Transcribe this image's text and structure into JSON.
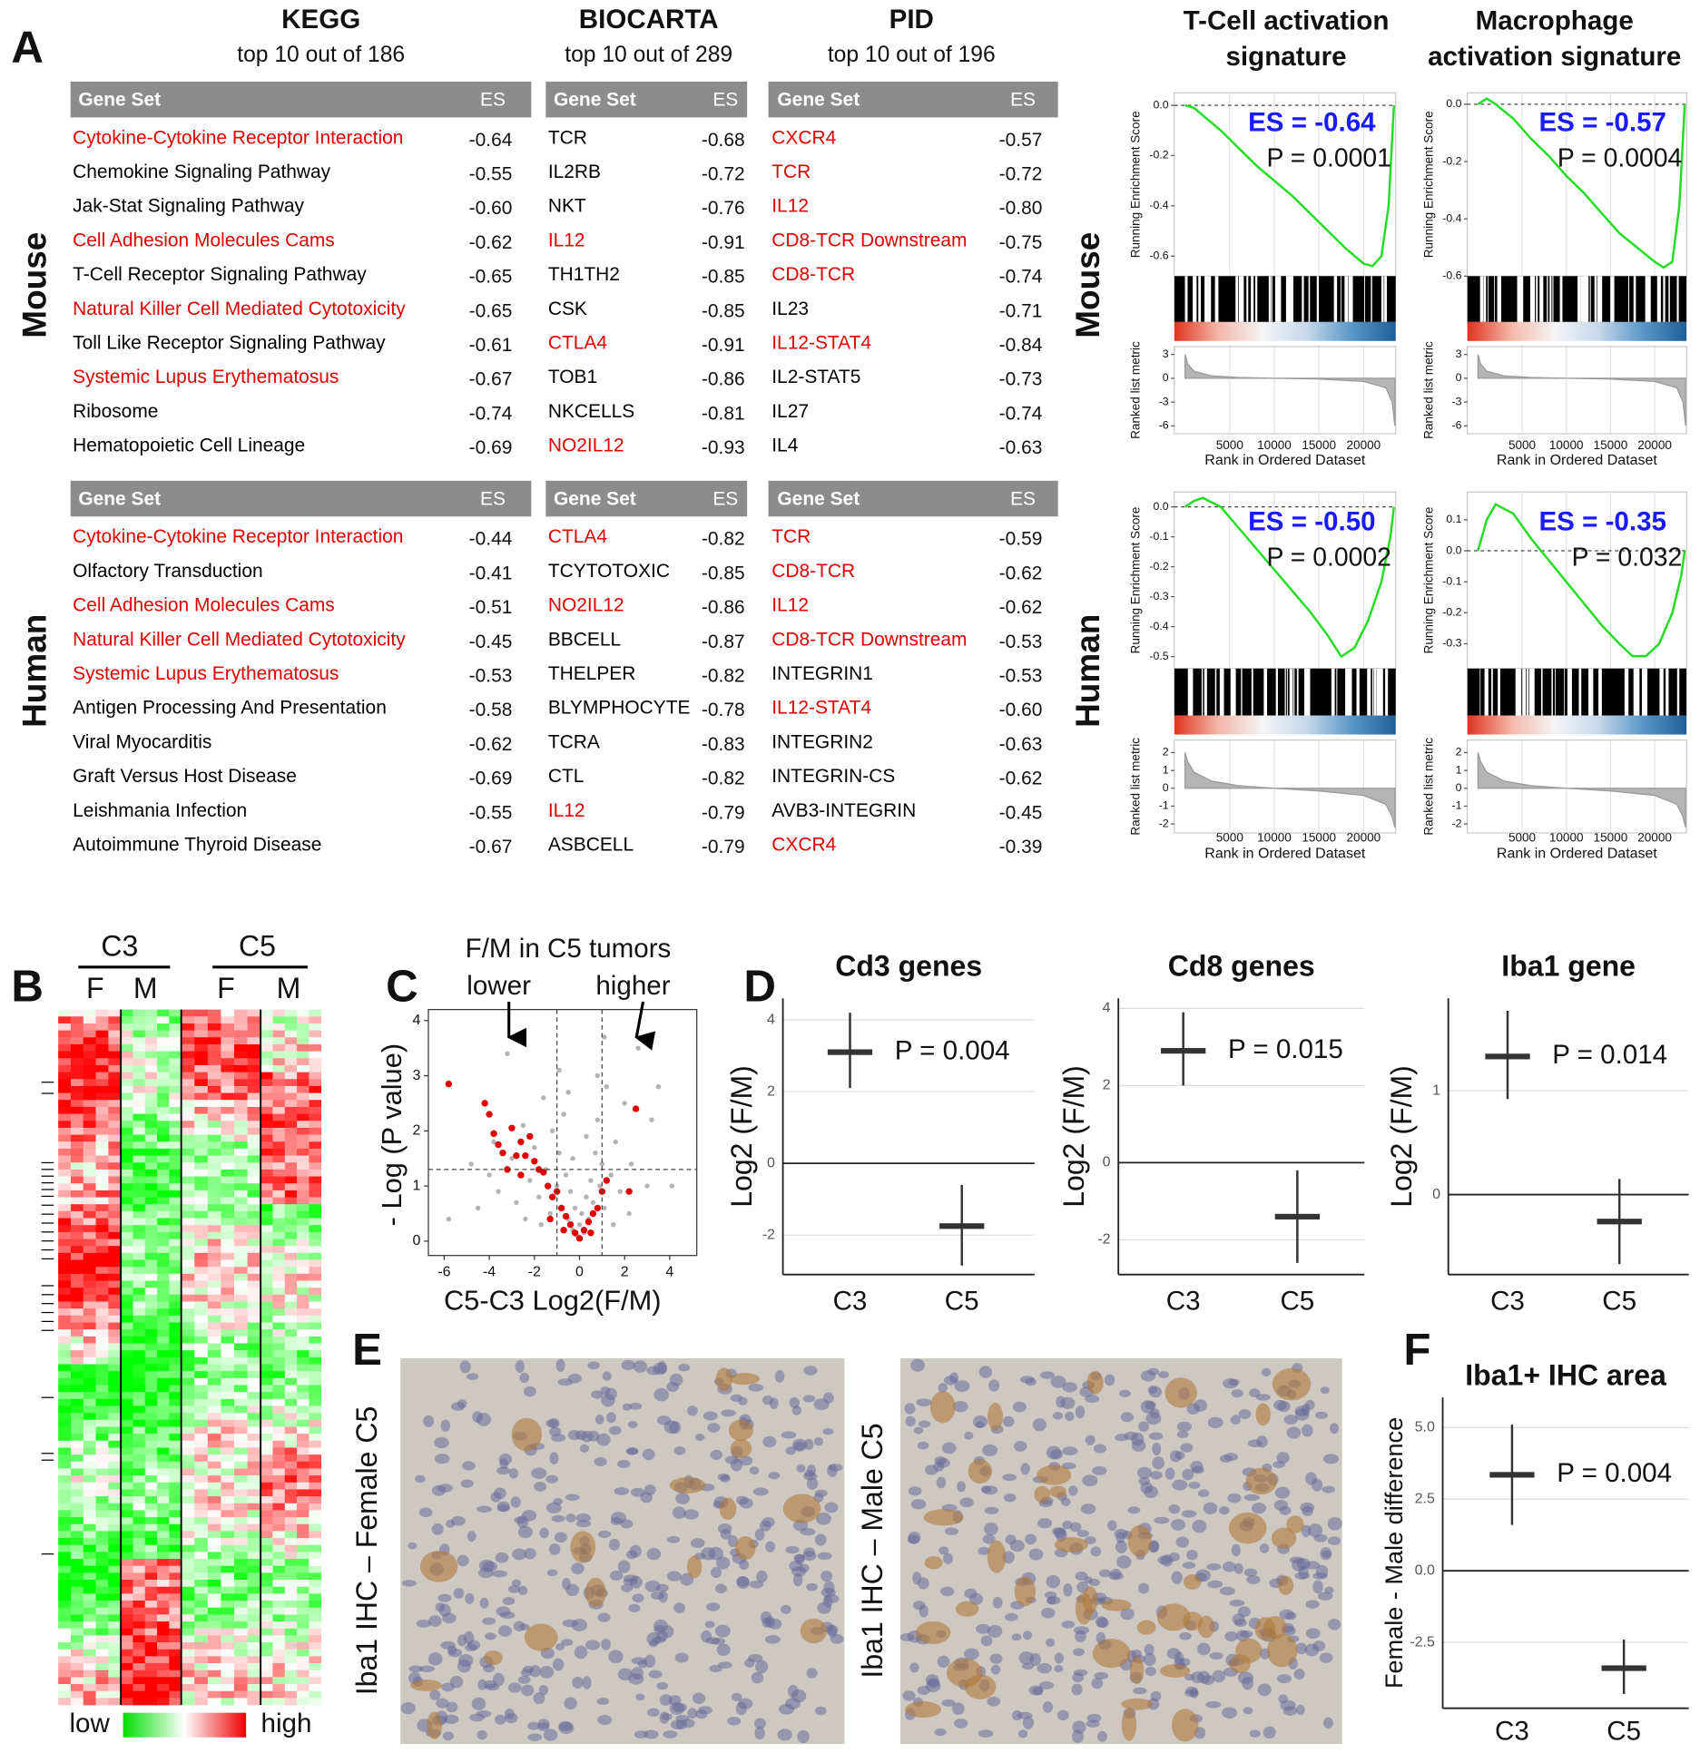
{
  "panel_labels": [
    "A",
    "B",
    "C",
    "D",
    "E",
    "F"
  ],
  "row_labels": [
    "Mouse",
    "Human"
  ],
  "tables": [
    {
      "title": "KEGG",
      "subtitle": "top 10 out of 186",
      "header": [
        "Gene Set",
        "ES"
      ],
      "mouse": [
        [
          "Cytokine-Cytokine Receptor Interaction",
          "-0.64",
          "#e00000"
        ],
        [
          "Chemokine Signaling Pathway",
          "-0.55",
          "#000000"
        ],
        [
          "Jak-Stat Signaling Pathway",
          "-0.60",
          "#000000"
        ],
        [
          "Cell Adhesion Molecules Cams",
          "-0.62",
          "#e00000"
        ],
        [
          "T-Cell Receptor Signaling Pathway",
          "-0.65",
          "#000000"
        ],
        [
          "Natural Killer Cell Mediated Cytotoxicity",
          "-0.65",
          "#e00000"
        ],
        [
          "Toll Like Receptor Signaling Pathway",
          "-0.61",
          "#000000"
        ],
        [
          "Systemic Lupus Erythematosus",
          "-0.67",
          "#e00000"
        ],
        [
          "Ribosome",
          "-0.74",
          "#000000"
        ],
        [
          "Hematopoietic Cell Lineage",
          "-0.69",
          "#000000"
        ]
      ],
      "human": [
        [
          "Cytokine-Cytokine Receptor Interaction",
          "-0.44",
          "#e00000"
        ],
        [
          "Olfactory Transduction",
          "-0.41",
          "#000000"
        ],
        [
          "Cell Adhesion Molecules Cams",
          "-0.51",
          "#e00000"
        ],
        [
          "Natural Killer Cell Mediated Cytotoxicity",
          "-0.45",
          "#e00000"
        ],
        [
          "Systemic Lupus Erythematosus",
          "-0.53",
          "#e00000"
        ],
        [
          "Antigen Processing And Presentation",
          "-0.58",
          "#000000"
        ],
        [
          "Viral Myocarditis",
          "-0.62",
          "#000000"
        ],
        [
          "Graft Versus Host Disease",
          "-0.69",
          "#000000"
        ],
        [
          "Leishmania Infection",
          "-0.55",
          "#000000"
        ],
        [
          "Autoimmune Thyroid Disease",
          "-0.67",
          "#000000"
        ]
      ]
    },
    {
      "title": "BIOCARTA",
      "subtitle": "top 10 out of 289",
      "header": [
        "Gene Set",
        "ES"
      ],
      "mouse": [
        [
          "TCR",
          "-0.68",
          "#000000"
        ],
        [
          "IL2RB",
          "-0.72",
          "#000000"
        ],
        [
          "NKT",
          "-0.76",
          "#000000"
        ],
        [
          "IL12",
          "-0.91",
          "#e00000"
        ],
        [
          "TH1TH2",
          "-0.85",
          "#000000"
        ],
        [
          "CSK",
          "-0.85",
          "#000000"
        ],
        [
          "CTLA4",
          "-0.91",
          "#e00000"
        ],
        [
          "TOB1",
          "-0.86",
          "#000000"
        ],
        [
          "NKCELLS",
          "-0.81",
          "#000000"
        ],
        [
          "NO2IL12",
          "-0.93",
          "#e00000"
        ]
      ],
      "human": [
        [
          "CTLA4",
          "-0.82",
          "#e00000"
        ],
        [
          "TCYTOTOXIC",
          "-0.85",
          "#000000"
        ],
        [
          "NO2IL12",
          "-0.86",
          "#e00000"
        ],
        [
          "BBCELL",
          "-0.87",
          "#000000"
        ],
        [
          "THELPER",
          "-0.82",
          "#000000"
        ],
        [
          "BLYMPHOCYTE",
          "-0.78",
          "#000000"
        ],
        [
          "TCRA",
          "-0.83",
          "#000000"
        ],
        [
          "CTL",
          "-0.82",
          "#000000"
        ],
        [
          "IL12",
          "-0.79",
          "#e00000"
        ],
        [
          "ASBCELL",
          "-0.79",
          "#000000"
        ]
      ]
    },
    {
      "title": "PID",
      "subtitle": "top 10 out of 196",
      "header": [
        "Gene Set",
        "ES"
      ],
      "mouse": [
        [
          "CXCR4",
          "-0.57",
          "#e00000"
        ],
        [
          "TCR",
          "-0.72",
          "#e00000"
        ],
        [
          "IL12",
          "-0.80",
          "#e00000"
        ],
        [
          "CD8-TCR Downstream",
          "-0.75",
          "#e00000"
        ],
        [
          "CD8-TCR",
          "-0.74",
          "#e00000"
        ],
        [
          "IL23",
          "-0.71",
          "#000000"
        ],
        [
          "IL12-STAT4",
          "-0.84",
          "#e00000"
        ],
        [
          "IL2-STAT5",
          "-0.73",
          "#000000"
        ],
        [
          "IL27",
          "-0.74",
          "#000000"
        ],
        [
          "IL4",
          "-0.63",
          "#000000"
        ]
      ],
      "human": [
        [
          "TCR",
          "-0.59",
          "#e00000"
        ],
        [
          "CD8-TCR",
          "-0.62",
          "#e00000"
        ],
        [
          "IL12",
          "-0.62",
          "#e00000"
        ],
        [
          "CD8-TCR Downstream",
          "-0.53",
          "#e00000"
        ],
        [
          "INTEGRIN1",
          "-0.53",
          "#000000"
        ],
        [
          "IL12-STAT4",
          "-0.60",
          "#e00000"
        ],
        [
          "INTEGRIN2",
          "-0.63",
          "#000000"
        ],
        [
          "INTEGRIN-CS",
          "-0.62",
          "#000000"
        ],
        [
          "AVB3-INTEGRIN",
          "-0.45",
          "#000000"
        ],
        [
          "CXCR4",
          "-0.39",
          "#e00000"
        ]
      ]
    }
  ],
  "heatmap": {
    "groups": [
      "C3",
      "C5"
    ],
    "columns": [
      "F",
      "M",
      "F",
      "M"
    ],
    "legend": [
      "low",
      "high"
    ]
  },
  "images": {
    "labels": [
      "Iba1 IHC – Female C5",
      "Iba1 IHC – Male C5"
    ]
  },
  "chart_data": [
    {
      "type": "gsea",
      "title": [
        "T-Cell activation",
        "signature"
      ],
      "es_label": "ES = -0.64",
      "p_label": "P = 0.0001",
      "ylabel": "Running Enrichment Score",
      "metric_label": "Ranked list metric",
      "xlabel": "Rank in Ordered Dataset",
      "color": "#22dd22",
      "label_color": "#1a1aff",
      "x": [
        0,
        1000,
        2000,
        4000,
        6000,
        8000,
        10000,
        12000,
        14000,
        16000,
        18000,
        20000,
        21000,
        22000,
        22800,
        23400
      ],
      "values": [
        0,
        -0.01,
        -0.04,
        -0.1,
        -0.17,
        -0.24,
        -0.3,
        -0.36,
        -0.43,
        -0.5,
        -0.57,
        -0.63,
        -0.64,
        -0.6,
        -0.4,
        0
      ],
      "xlim": [
        -1200,
        23600
      ],
      "xticks": [
        5000,
        10000,
        15000,
        20000
      ],
      "ylim": [
        -0.68,
        0.05
      ],
      "yticks": [
        {
          "value": 0,
          "label": "0.0"
        },
        -0.2,
        -0.4,
        -0.6
      ],
      "metric": {
        "x": [
          0,
          300,
          1000,
          3000,
          6000,
          10000,
          15000,
          20000,
          22500,
          23200,
          23500
        ],
        "values": [
          3,
          1.8,
          0.9,
          0.3,
          0.1,
          0,
          -0.1,
          -0.4,
          -1.2,
          -3,
          -6
        ],
        "ylim": [
          -7,
          4
        ],
        "yticks": [
          3,
          0,
          -3,
          -6
        ]
      }
    },
    {
      "type": "gsea",
      "title": [
        "Macrophage",
        "activation signature"
      ],
      "es_label": "ES = -0.57",
      "p_label": "P = 0.0004",
      "ylabel": "Running Enrichment Score",
      "metric_label": "Ranked list metric",
      "xlabel": "Rank in Ordered Dataset",
      "color": "#22dd22",
      "label_color": "#1a1aff",
      "x": [
        0,
        1000,
        2000,
        4000,
        6000,
        8000,
        10000,
        12000,
        14000,
        16000,
        18000,
        20000,
        21000,
        22000,
        22800,
        23400
      ],
      "values": [
        0,
        0.02,
        0,
        -0.05,
        -0.12,
        -0.18,
        -0.25,
        -0.31,
        -0.38,
        -0.45,
        -0.5,
        -0.55,
        -0.57,
        -0.55,
        -0.35,
        0
      ],
      "xlim": [
        -1200,
        23600
      ],
      "xticks": [
        5000,
        10000,
        15000,
        20000
      ],
      "ylim": [
        -0.6,
        0.04
      ],
      "yticks": [
        {
          "value": 0,
          "label": "0.0"
        },
        -0.2,
        -0.4,
        -0.6
      ],
      "metric": {
        "x": [
          0,
          300,
          1000,
          3000,
          6000,
          10000,
          15000,
          20000,
          22500,
          23200,
          23500
        ],
        "values": [
          3,
          1.8,
          0.9,
          0.3,
          0.1,
          0,
          -0.1,
          -0.4,
          -1.2,
          -3,
          -6
        ],
        "ylim": [
          -7,
          4
        ],
        "yticks": [
          3,
          0,
          -3,
          -6
        ]
      }
    },
    {
      "type": "gsea",
      "es_label": "ES = -0.50",
      "p_label": "P = 0.0002",
      "ylabel": "Running Enrichment Score",
      "metric_label": "Ranked list metric",
      "xlabel": "Rank in Ordered Dataset",
      "color": "#22dd22",
      "label_color": "#1a1aff",
      "x": [
        0,
        1000,
        2000,
        4000,
        6000,
        8000,
        10000,
        12000,
        14000,
        16000,
        17500,
        19000,
        20500,
        22000,
        23000,
        23400
      ],
      "values": [
        0,
        0.02,
        0.03,
        0,
        -0.07,
        -0.14,
        -0.21,
        -0.28,
        -0.35,
        -0.43,
        -0.5,
        -0.47,
        -0.38,
        -0.25,
        -0.1,
        0
      ],
      "xlim": [
        -1200,
        23600
      ],
      "xticks": [
        5000,
        10000,
        15000,
        20000
      ],
      "ylim": [
        -0.54,
        0.05
      ],
      "yticks": [
        {
          "value": 0,
          "label": "0.0"
        },
        -0.1,
        -0.2,
        -0.3,
        -0.4,
        -0.5
      ],
      "metric": {
        "x": [
          0,
          300,
          1000,
          3000,
          6000,
          10000,
          15000,
          20000,
          22500,
          23200,
          23500
        ],
        "values": [
          2,
          1.5,
          0.9,
          0.4,
          0.15,
          0,
          -0.15,
          -0.4,
          -0.9,
          -1.6,
          -2.2
        ],
        "ylim": [
          -2.5,
          2.7
        ],
        "yticks": [
          2,
          1,
          0,
          -1,
          -2
        ]
      }
    },
    {
      "type": "gsea",
      "es_label": "ES = -0.35",
      "p_label": "P = 0.032",
      "ylabel": "Running Enrichment Score",
      "metric_label": "Ranked list metric",
      "xlabel": "Rank in Ordered Dataset",
      "color": "#22dd22",
      "label_color": "#1a1aff",
      "x": [
        0,
        1000,
        2000,
        4000,
        6000,
        8000,
        10000,
        12000,
        14000,
        16000,
        17500,
        19000,
        20500,
        22000,
        23000,
        23400
      ],
      "values": [
        0,
        0.1,
        0.15,
        0.12,
        0.04,
        -0.03,
        -0.1,
        -0.17,
        -0.24,
        -0.3,
        -0.34,
        -0.34,
        -0.3,
        -0.2,
        -0.08,
        0
      ],
      "xlim": [
        -1200,
        23600
      ],
      "xticks": [
        5000,
        10000,
        15000,
        20000
      ],
      "ylim": [
        -0.38,
        0.19
      ],
      "yticks": [
        0.1,
        {
          "value": 0,
          "label": "0.0"
        },
        -0.1,
        -0.2,
        -0.3
      ],
      "metric": {
        "x": [
          0,
          300,
          1000,
          3000,
          6000,
          10000,
          15000,
          20000,
          22500,
          23200,
          23500
        ],
        "values": [
          2,
          1.5,
          0.9,
          0.4,
          0.15,
          0,
          -0.15,
          -0.4,
          -0.9,
          -1.6,
          -2.2
        ],
        "ylim": [
          -2.5,
          2.7
        ],
        "yticks": [
          2,
          1,
          0,
          -1,
          -2
        ]
      }
    },
    {
      "type": "volcano",
      "title": "F/M in C5 tumors",
      "annotations": [
        "lower",
        "higher"
      ],
      "xlabel": "C5-C3 Log2(F/M)",
      "ylabel": "- Log (P value)",
      "xlim": [
        -6.7,
        5.2
      ],
      "ylim": [
        -0.26,
        4.2
      ],
      "xticks": [
        -6,
        -4,
        -2,
        0,
        2,
        4
      ],
      "yticks": [
        0,
        1,
        2,
        3,
        4
      ],
      "thresholds": {
        "x": [
          -1,
          1
        ],
        "y": 1.3
      },
      "series": [
        {
          "color": "#b4b4b4",
          "x": [
            -5.8,
            -4.5,
            -4,
            -3.6,
            -3.2,
            -3,
            -2.8,
            -2.5,
            -2.2,
            -2,
            -1.8,
            -1.6,
            -1.5,
            -1.3,
            -1.2,
            -1,
            -0.9,
            -0.8,
            -0.7,
            -0.6,
            -0.5,
            -0.4,
            -0.3,
            -0.2,
            -0.1,
            0,
            0.1,
            0.2,
            0.3,
            0.4,
            0.5,
            0.6,
            0.7,
            0.8,
            0.9,
            1,
            1.1,
            1.2,
            1.4,
            1.6,
            1.8,
            2,
            2.3,
            2.6,
            3,
            3.5,
            4.1,
            2.2,
            -2.4,
            1.5,
            -1.7,
            -0.9,
            0.8,
            1.1,
            -3.8,
            -4.8,
            3.2,
            0.3,
            -0.3,
            -0.5
          ],
          "values": [
            0.4,
            0.6,
            1.2,
            0.9,
            3.4,
            1.5,
            0.7,
            2.1,
            1.1,
            1.7,
            0.8,
            2.6,
            1.3,
            0.5,
            2,
            1,
            1.6,
            0.6,
            2.3,
            1.2,
            0.4,
            0.9,
            0.2,
            0.6,
            0.1,
            0.3,
            0.5,
            0.15,
            0.8,
            0.4,
            1.1,
            0.7,
            1.6,
            2.2,
            1,
            1.4,
            0.6,
            2.8,
            1.2,
            1.8,
            0.9,
            2.5,
            1.4,
            3.5,
            1,
            2.8,
            1,
            0.5,
            0.4,
            0.3,
            0.3,
            3.1,
            3,
            3.7,
            1.8,
            1.4,
            2.2,
            1.9,
            1.5,
            2.7
          ]
        },
        {
          "color": "#e00000",
          "x": [
            -5.8,
            -4.2,
            -4,
            -3.8,
            -3.6,
            -3.4,
            -3.2,
            -3,
            -2.8,
            -2.6,
            -2.4,
            -2.2,
            -2,
            -1.8,
            -1.6,
            -1.4,
            -1.2,
            -1,
            -0.8,
            -0.6,
            -0.4,
            -0.2,
            0,
            0.2,
            0.4,
            0.6,
            0.8,
            1,
            1.2,
            2.2,
            2.5,
            -1.3,
            -0.7,
            0.5,
            -2.6
          ],
          "values": [
            2.85,
            2.5,
            2.3,
            1.95,
            1.75,
            1.6,
            1.3,
            2.05,
            1.55,
            1.8,
            1.55,
            1.9,
            1.45,
            1.3,
            1.25,
            1,
            0.8,
            0.9,
            0.6,
            0.45,
            0.3,
            0.15,
            0.05,
            0.2,
            0.35,
            0.5,
            0.6,
            0.9,
            1.1,
            0.9,
            2.4,
            0.4,
            0.2,
            0.15,
            1.2
          ]
        }
      ]
    },
    {
      "type": "dot",
      "title": "Cd3 genes",
      "ylabel": "Log2 (F/M)",
      "categories": [
        "C3",
        "C5"
      ],
      "values": [
        3.1,
        -1.75
      ],
      "errors_low": [
        2.1,
        -2.85
      ],
      "errors_high": [
        4.2,
        -0.6
      ],
      "p_label": "P = 0.004",
      "ylim": [
        -3.1,
        4.6
      ],
      "yticks": [
        -2,
        0,
        2,
        4
      ]
    },
    {
      "type": "dot",
      "title": "Cd8 genes",
      "ylabel": "Log2 (F/M)",
      "categories": [
        "C3",
        "C5"
      ],
      "values": [
        2.9,
        -1.4
      ],
      "errors_low": [
        2,
        -2.6
      ],
      "errors_high": [
        3.9,
        -0.2
      ],
      "p_label": "P = 0.015",
      "ylim": [
        -2.9,
        4.26
      ],
      "yticks": [
        -2,
        0,
        2,
        4
      ]
    },
    {
      "type": "dot",
      "title": "Iba1 gene",
      "ylabel": "Log2 (F/M)",
      "categories": [
        "C3",
        "C5"
      ],
      "values": [
        1.33,
        -0.26
      ],
      "errors_low": [
        0.92,
        -0.67
      ],
      "errors_high": [
        1.77,
        0.15
      ],
      "p_label": "P = 0.014",
      "ylim": [
        -0.77,
        1.89
      ],
      "yticks": [
        0,
        1
      ]
    },
    {
      "type": "dot",
      "title": "Iba1+ IHC area",
      "ylabel": "Female - Male difference",
      "categories": [
        "C3",
        "C5"
      ],
      "values": [
        3.35,
        -3.4
      ],
      "errors_low": [
        1.6,
        -4.3
      ],
      "errors_high": [
        5.1,
        -2.4
      ],
      "p_label": "P = 0.004",
      "ylim": [
        -4.8,
        6.05
      ],
      "yticks": [
        {
          "value": -2.5,
          "label": "-2.5"
        },
        {
          "value": 0,
          "label": "0.0"
        },
        {
          "value": 2.5,
          "label": "2.5"
        },
        {
          "value": 5,
          "label": "5.0"
        }
      ]
    }
  ]
}
